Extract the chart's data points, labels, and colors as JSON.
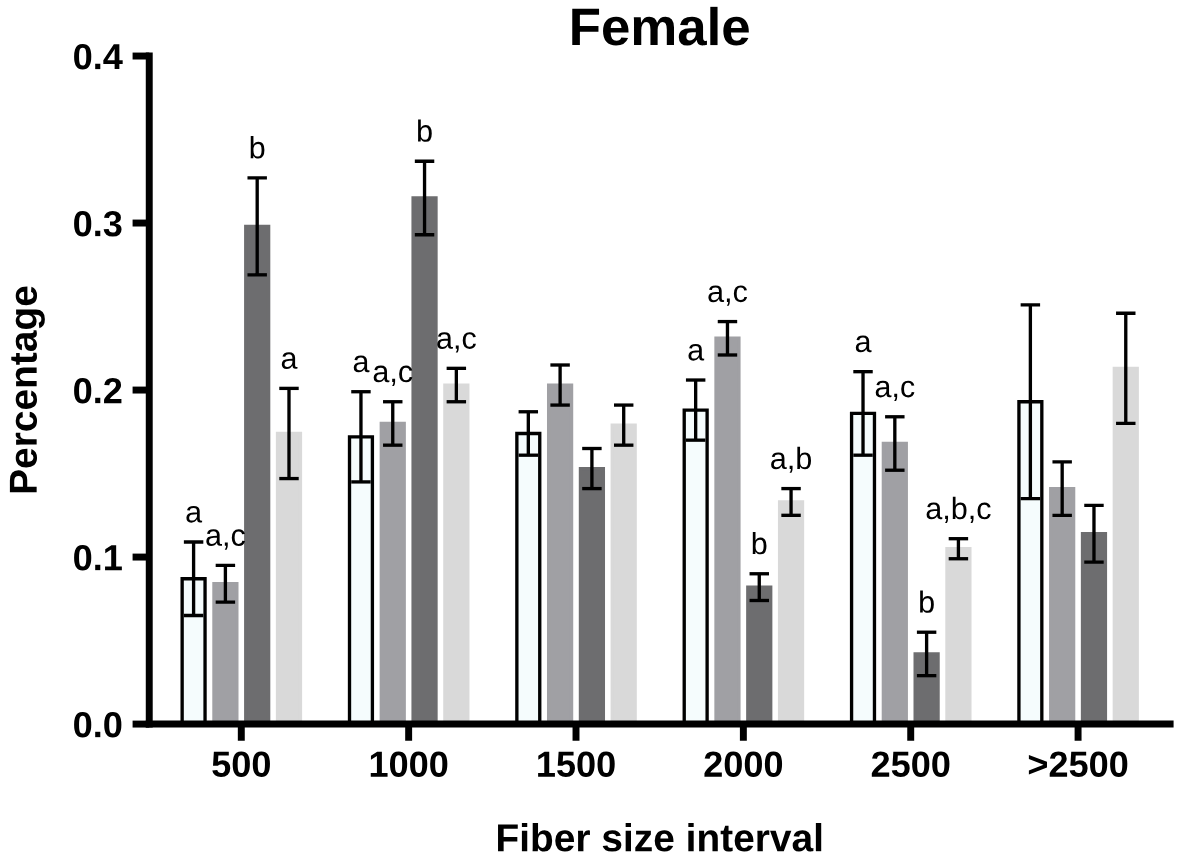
{
  "chart_data": {
    "type": "bar",
    "title": "Female",
    "xlabel": "Fiber size interval",
    "ylabel": "Percentage",
    "categories": [
      "500",
      "1000",
      "1500",
      "2000",
      "2500",
      ">2500"
    ],
    "ylim": [
      0,
      0.4
    ],
    "yticks": [
      {
        "value": 0,
        "label": "0.0"
      },
      0.1,
      0.2,
      0.3,
      0.4
    ],
    "grid": false,
    "legend": false,
    "series": [
      {
        "color": "#f5fcfd",
        "values": [
          0.087,
          0.172,
          0.174,
          0.188,
          0.186,
          0.193
        ],
        "errors": [
          0.022,
          0.027,
          0.013,
          0.018,
          0.025,
          0.058
        ],
        "value_labels": [
          "a",
          "a",
          null,
          "a",
          "a",
          null
        ]
      },
      {
        "color": "#a0a0a4",
        "values": [
          0.084,
          0.18,
          0.203,
          0.231,
          0.168,
          0.141
        ],
        "errors": [
          0.011,
          0.013,
          0.012,
          0.01,
          0.016,
          0.016
        ],
        "value_labels": [
          "a,c",
          "a,c",
          null,
          "a,c",
          "a,c",
          null
        ]
      },
      {
        "color": "#6d6d6f",
        "values": [
          0.298,
          0.315,
          0.153,
          0.082,
          0.042,
          0.114
        ],
        "errors": [
          0.029,
          0.022,
          0.012,
          0.008,
          0.013,
          0.017
        ],
        "value_labels": [
          "b",
          "b",
          null,
          "b",
          "b",
          null
        ]
      },
      {
        "color": "#d9d9d9",
        "values": [
          0.174,
          0.203,
          0.179,
          0.133,
          0.105,
          0.213
        ],
        "errors": [
          0.027,
          0.01,
          0.012,
          0.008,
          0.006,
          0.033
        ],
        "value_labels": [
          "a",
          "a,c",
          null,
          "a,b",
          "a,b,c",
          null
        ]
      }
    ]
  }
}
